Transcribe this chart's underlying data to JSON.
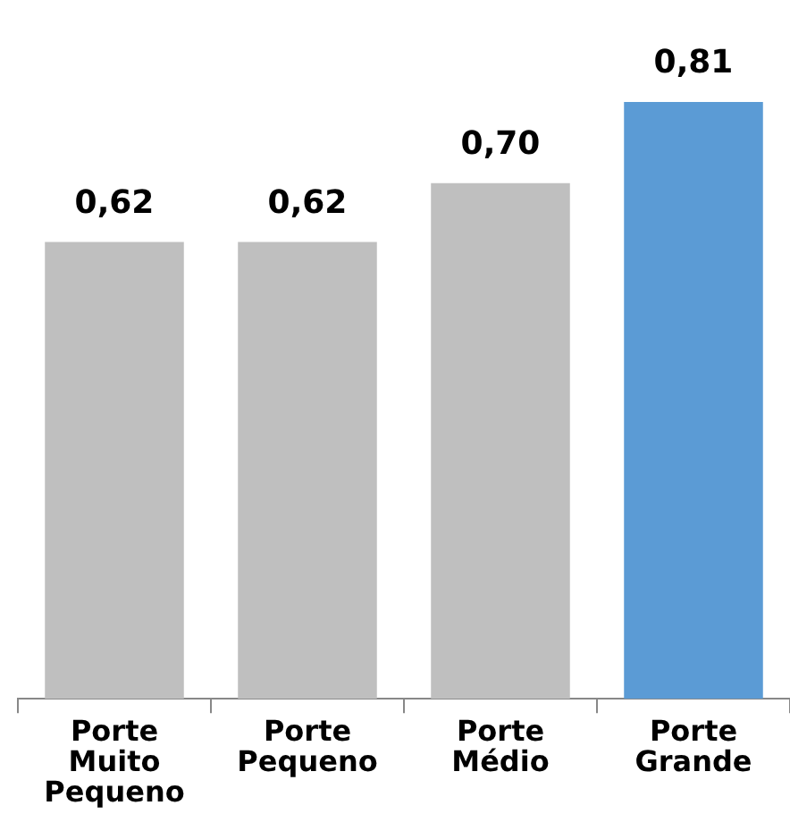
{
  "chart_data": {
    "type": "bar",
    "categories": [
      "Porte Muito Pequeno",
      "Porte Pequeno",
      "Porte Médio",
      "Porte Grande"
    ],
    "values": [
      0.62,
      0.62,
      0.7,
      0.81
    ],
    "value_labels": [
      "0,62",
      "0,62",
      "0,70",
      "0,81"
    ],
    "colors": [
      "#bfbfbf",
      "#bfbfbf",
      "#bfbfbf",
      "#5b9bd5"
    ],
    "grid": false,
    "legend": false
  }
}
